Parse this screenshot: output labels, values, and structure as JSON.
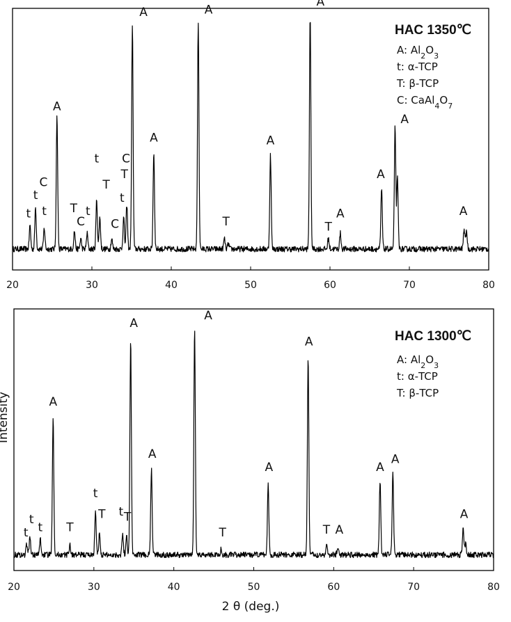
{
  "chart_data": [
    {
      "type": "line",
      "title": "HAC 1350℃",
      "xlabel": "",
      "ylabel": "",
      "xlim": [
        20,
        80
      ],
      "xticks": [
        "20",
        "30",
        "40",
        "50",
        "60",
        "70",
        "80"
      ],
      "grid": false,
      "legend": {
        "position": "top-right",
        "items": [
          "A: Al2O3",
          "t: α-TCP",
          "T: β-TCP",
          "C: CaAl4O7"
        ]
      },
      "baseline": 0.08,
      "peaks": [
        {
          "x": 22.2,
          "y": 0.17
        },
        {
          "x": 22.9,
          "y": 0.24
        },
        {
          "x": 24.0,
          "y": 0.16
        },
        {
          "x": 25.6,
          "y": 0.59
        },
        {
          "x": 27.8,
          "y": 0.15
        },
        {
          "x": 28.6,
          "y": 0.12
        },
        {
          "x": 29.4,
          "y": 0.14
        },
        {
          "x": 30.6,
          "y": 0.27
        },
        {
          "x": 31.0,
          "y": 0.2
        },
        {
          "x": 32.5,
          "y": 0.12
        },
        {
          "x": 34.0,
          "y": 0.2
        },
        {
          "x": 34.4,
          "y": 0.25
        },
        {
          "x": 35.1,
          "y": 0.94
        },
        {
          "x": 37.8,
          "y": 0.45
        },
        {
          "x": 43.4,
          "y": 0.95
        },
        {
          "x": 46.7,
          "y": 0.12
        },
        {
          "x": 47.2,
          "y": 0.1
        },
        {
          "x": 52.5,
          "y": 0.44
        },
        {
          "x": 57.5,
          "y": 0.98
        },
        {
          "x": 59.8,
          "y": 0.12
        },
        {
          "x": 61.3,
          "y": 0.14
        },
        {
          "x": 66.5,
          "y": 0.31
        },
        {
          "x": 68.2,
          "y": 0.55
        },
        {
          "x": 68.5,
          "y": 0.35
        },
        {
          "x": 76.9,
          "y": 0.16
        },
        {
          "x": 77.2,
          "y": 0.15
        }
      ],
      "annotations": [
        {
          "text": "t",
          "x": 22.0,
          "y": 0.19
        },
        {
          "text": "t",
          "x": 22.9,
          "y": 0.26
        },
        {
          "text": "C",
          "x": 23.9,
          "y": 0.31
        },
        {
          "text": "t",
          "x": 24.0,
          "y": 0.2
        },
        {
          "text": "A",
          "x": 25.6,
          "y": 0.6
        },
        {
          "text": "T",
          "x": 27.7,
          "y": 0.21
        },
        {
          "text": "C",
          "x": 28.6,
          "y": 0.16
        },
        {
          "text": "t",
          "x": 29.5,
          "y": 0.2
        },
        {
          "text": "t",
          "x": 30.6,
          "y": 0.4
        },
        {
          "text": "T",
          "x": 31.8,
          "y": 0.3
        },
        {
          "text": "C",
          "x": 32.9,
          "y": 0.15
        },
        {
          "text": "t",
          "x": 33.8,
          "y": 0.25
        },
        {
          "text": "T",
          "x": 34.1,
          "y": 0.34
        },
        {
          "text": "C",
          "x": 34.3,
          "y": 0.4
        },
        {
          "text": "A",
          "x": 36.5,
          "y": 0.96
        },
        {
          "text": "A",
          "x": 37.8,
          "y": 0.48
        },
        {
          "text": "A",
          "x": 44.7,
          "y": 0.97
        },
        {
          "text": "T",
          "x": 46.9,
          "y": 0.16
        },
        {
          "text": "A",
          "x": 52.5,
          "y": 0.47
        },
        {
          "text": "A",
          "x": 58.8,
          "y": 1.0
        },
        {
          "text": "T",
          "x": 59.8,
          "y": 0.14
        },
        {
          "text": "A",
          "x": 61.3,
          "y": 0.19
        },
        {
          "text": "A",
          "x": 66.4,
          "y": 0.34
        },
        {
          "text": "A",
          "x": 69.4,
          "y": 0.55
        },
        {
          "text": "A",
          "x": 76.8,
          "y": 0.2
        }
      ]
    },
    {
      "type": "line",
      "title": "HAC 1300℃",
      "xlabel": "2 θ (deg.)",
      "ylabel": "Intensity",
      "xlim": [
        20,
        80
      ],
      "xticks": [
        "20",
        "30",
        "40",
        "50",
        "60",
        "70",
        "80"
      ],
      "grid": false,
      "legend": {
        "position": "top-right",
        "items": [
          "A: Al2O3",
          "t: α-TCP",
          "T: β-TCP"
        ]
      },
      "baseline": 0.06,
      "peaks": [
        {
          "x": 21.6,
          "y": 0.1
        },
        {
          "x": 22.0,
          "y": 0.13
        },
        {
          "x": 23.3,
          "y": 0.12
        },
        {
          "x": 24.9,
          "y": 0.59
        },
        {
          "x": 27.0,
          "y": 0.1
        },
        {
          "x": 30.2,
          "y": 0.22
        },
        {
          "x": 30.7,
          "y": 0.14
        },
        {
          "x": 33.6,
          "y": 0.14
        },
        {
          "x": 34.1,
          "y": 0.13
        },
        {
          "x": 34.6,
          "y": 0.89
        },
        {
          "x": 37.2,
          "y": 0.39
        },
        {
          "x": 42.6,
          "y": 0.93
        },
        {
          "x": 45.9,
          "y": 0.08
        },
        {
          "x": 51.8,
          "y": 0.33
        },
        {
          "x": 56.8,
          "y": 0.82
        },
        {
          "x": 59.1,
          "y": 0.1
        },
        {
          "x": 60.5,
          "y": 0.09
        },
        {
          "x": 65.8,
          "y": 0.34
        },
        {
          "x": 67.4,
          "y": 0.37
        },
        {
          "x": 76.2,
          "y": 0.16
        },
        {
          "x": 76.5,
          "y": 0.1
        }
      ],
      "annotations": [
        {
          "text": "t",
          "x": 21.5,
          "y": 0.12
        },
        {
          "text": "t",
          "x": 22.2,
          "y": 0.17
        },
        {
          "text": "t",
          "x": 23.3,
          "y": 0.14
        },
        {
          "text": "A",
          "x": 24.9,
          "y": 0.62
        },
        {
          "text": "T",
          "x": 27.0,
          "y": 0.14
        },
        {
          "text": "t",
          "x": 30.2,
          "y": 0.27
        },
        {
          "text": "T",
          "x": 31.0,
          "y": 0.19
        },
        {
          "text": "t",
          "x": 33.4,
          "y": 0.2
        },
        {
          "text": "T",
          "x": 34.2,
          "y": 0.18
        },
        {
          "text": "A",
          "x": 35.0,
          "y": 0.92
        },
        {
          "text": "A",
          "x": 37.3,
          "y": 0.42
        },
        {
          "text": "A",
          "x": 44.3,
          "y": 0.95
        },
        {
          "text": "T",
          "x": 46.1,
          "y": 0.12
        },
        {
          "text": "A",
          "x": 51.9,
          "y": 0.37
        },
        {
          "text": "A",
          "x": 56.9,
          "y": 0.85
        },
        {
          "text": "T",
          "x": 59.1,
          "y": 0.13
        },
        {
          "text": "A",
          "x": 60.7,
          "y": 0.13
        },
        {
          "text": "A",
          "x": 65.8,
          "y": 0.37
        },
        {
          "text": "A",
          "x": 67.7,
          "y": 0.4
        },
        {
          "text": "A",
          "x": 76.3,
          "y": 0.19
        }
      ]
    }
  ]
}
